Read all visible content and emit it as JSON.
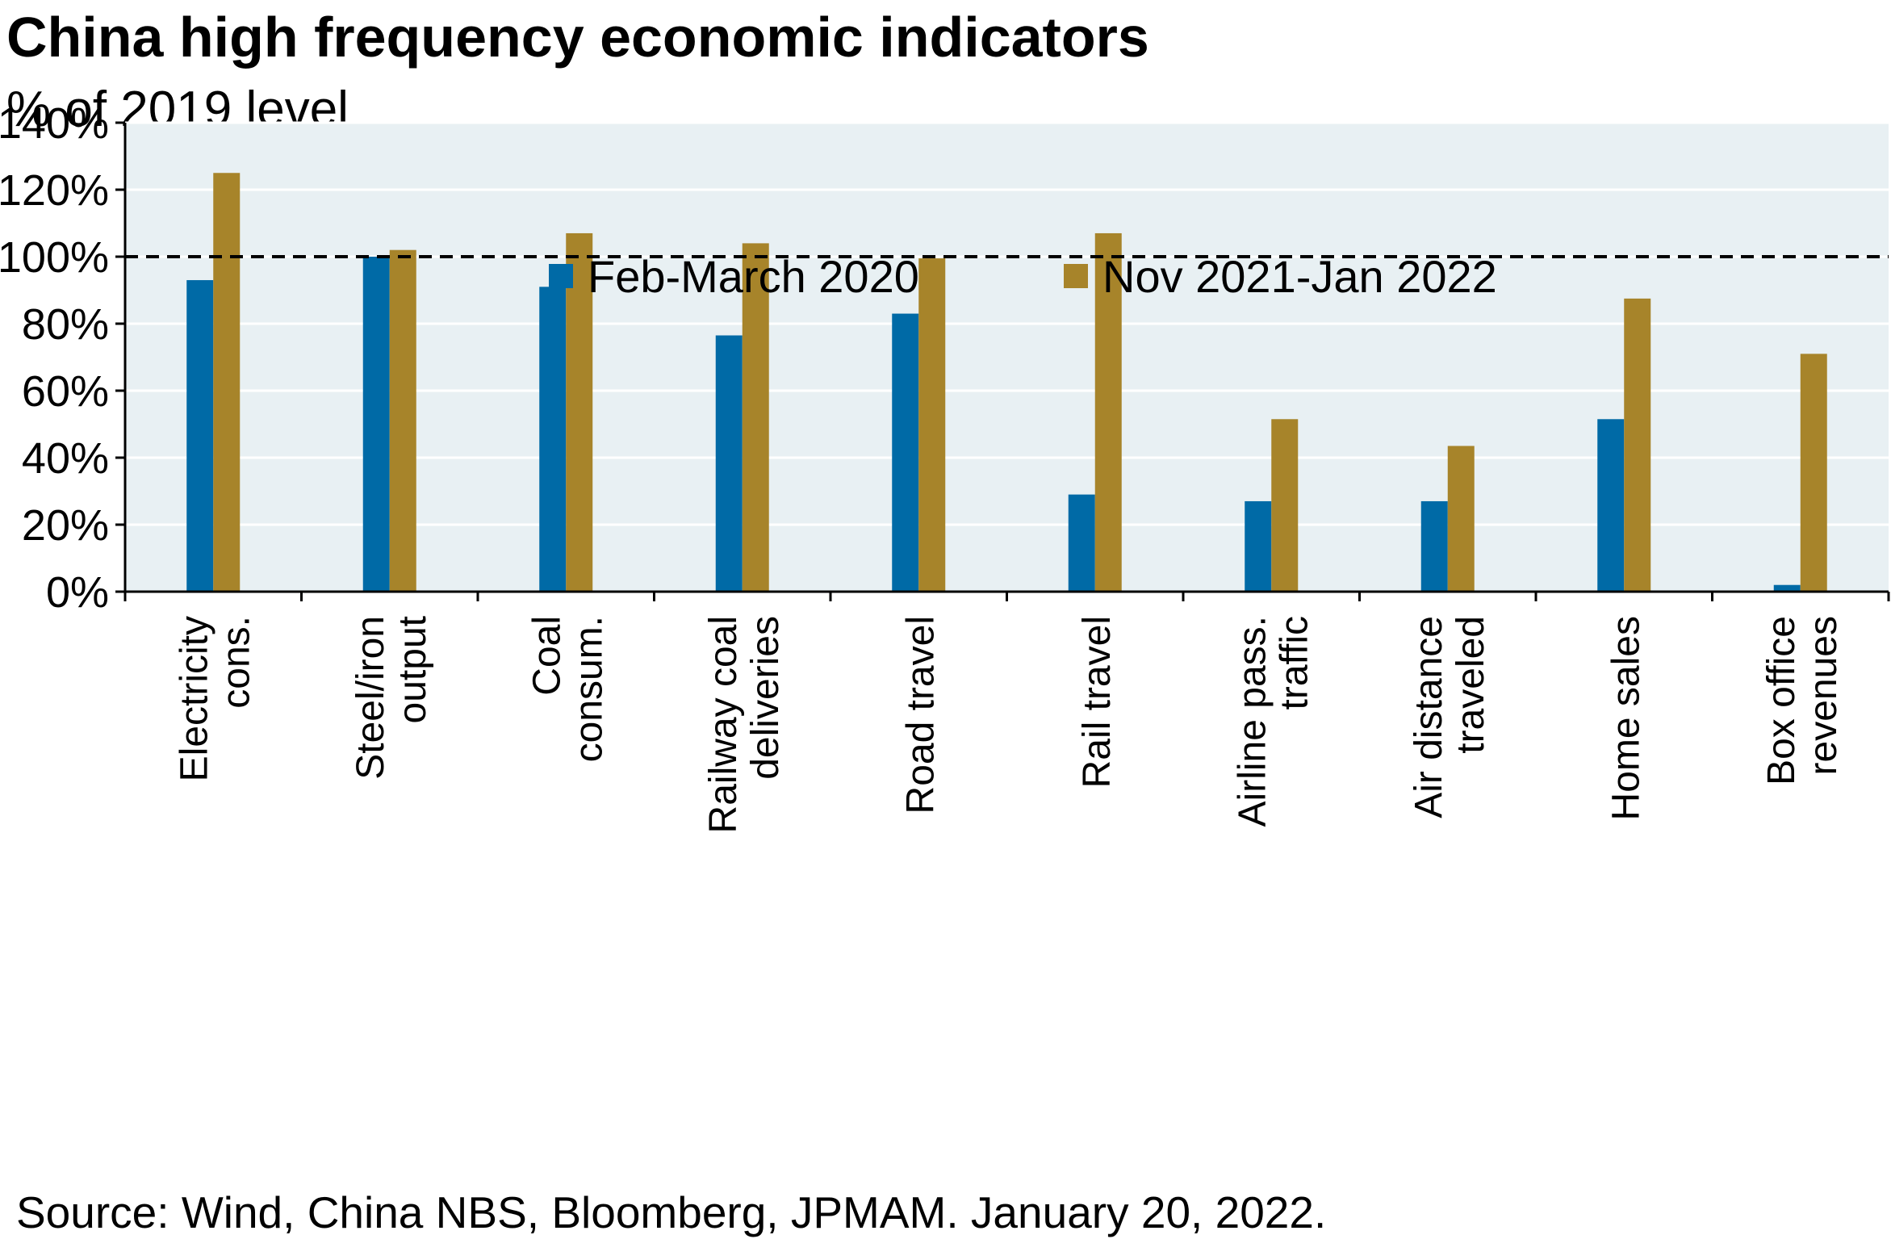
{
  "chart_data": {
    "type": "bar",
    "title": "China high frequency economic indicators",
    "subtitle": "% of 2019 level",
    "source": "Source: Wind, China NBS, Bloomberg, JPMAM. January 20, 2022.",
    "categories": [
      [
        "Electricity",
        "cons."
      ],
      [
        "Steel/iron",
        "output"
      ],
      [
        "Coal",
        "consum."
      ],
      [
        "Railway coal",
        "deliveries"
      ],
      [
        "Road travel"
      ],
      [
        "Rail travel"
      ],
      [
        "Airline pass.",
        "traffic"
      ],
      [
        "Air distance",
        "traveled"
      ],
      [
        "Home sales"
      ],
      [
        "Box office",
        "revenues"
      ]
    ],
    "series": [
      {
        "name": "Feb-March 2020",
        "color": "#006aa6",
        "values": [
          93,
          100,
          91,
          76.5,
          83,
          29,
          27,
          27,
          51.5,
          2
        ]
      },
      {
        "name": "Nov 2021-Jan 2022",
        "color": "#a7842a",
        "values": [
          125,
          102,
          107,
          104,
          99.5,
          107,
          51.5,
          43.5,
          87.5,
          71
        ]
      }
    ],
    "ylim": [
      0,
      140
    ],
    "yticks": [
      0,
      20,
      40,
      60,
      80,
      100,
      120,
      140
    ],
    "ytick_labels": [
      "0%",
      "20%",
      "40%",
      "60%",
      "80%",
      "100%",
      "120%",
      "140%"
    ],
    "reference_line": 100,
    "legend_position": "top",
    "plot_background": "#e8f0f3",
    "grid": true
  }
}
